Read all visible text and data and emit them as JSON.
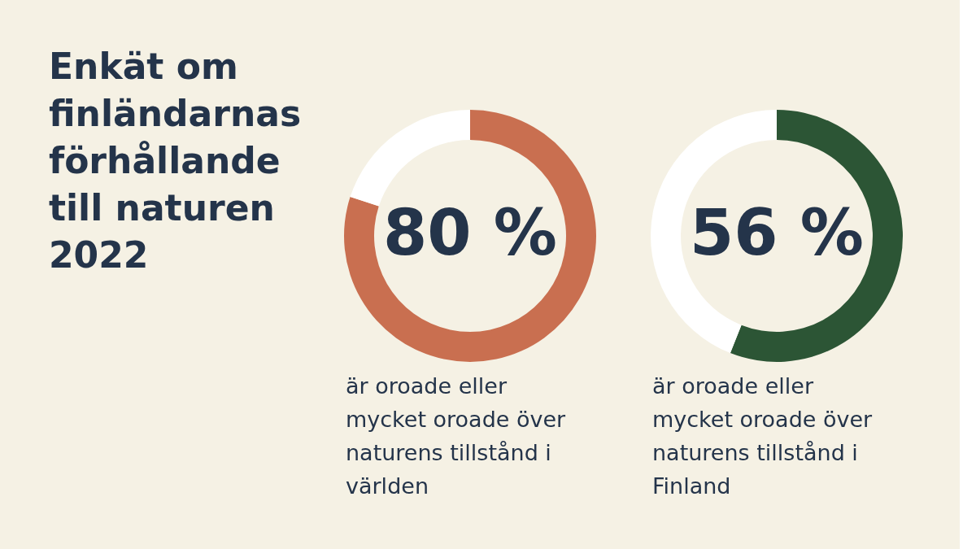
{
  "chart_data": [
    {
      "type": "other",
      "title": "Enkät om finländarnas förhållande till naturen 2022"
    },
    {
      "type": "donut",
      "categories": [
        null,
        null
      ],
      "values": [
        80,
        20
      ],
      "colors": [
        "#c96f50",
        "#ffffff"
      ],
      "value_labels": [
        "80 %",
        null
      ],
      "annotations": [
        "är oroade eller mycket oroade över naturens tillstånd i världen"
      ]
    },
    {
      "type": "donut",
      "categories": [
        null,
        null
      ],
      "values": [
        56,
        44
      ],
      "colors": [
        "#2c5535",
        "#ffffff"
      ],
      "value_labels": [
        "56 %",
        null
      ],
      "annotations": [
        "är oroade eller mycket oroade över naturens tillstånd i Finland"
      ]
    }
  ]
}
